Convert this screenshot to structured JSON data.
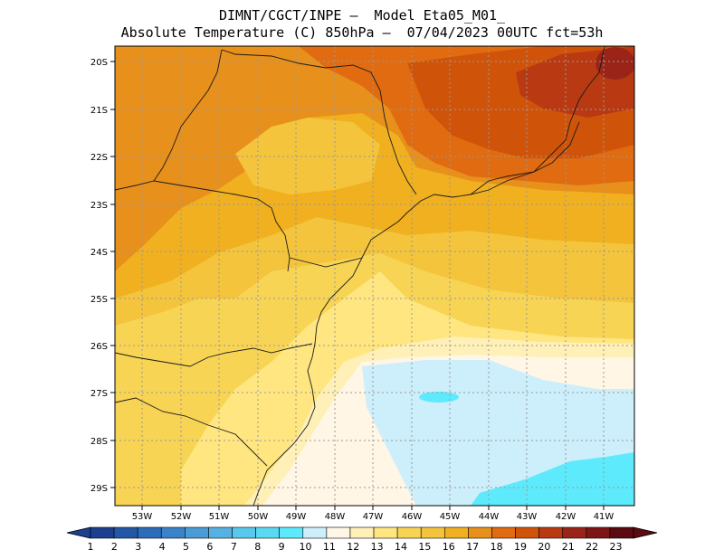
{
  "title_line1": "DIMNT/CGCT/INPE –  Model Eta05_M01_",
  "title_line2": "Absolute Temperature (C) 850hPa –  07/04/2023 00UTC fct=53h",
  "lat_labels": [
    "20S",
    "21S",
    "22S",
    "23S",
    "24S",
    "25S",
    "26S",
    "27S",
    "28S",
    "29S"
  ],
  "lon_labels": [
    "53W",
    "52W",
    "51W",
    "50W",
    "49W",
    "48W",
    "47W",
    "46W",
    "45W",
    "44W",
    "43W",
    "42W",
    "41W"
  ],
  "colorbar": {
    "labels": [
      "1",
      "2",
      "3",
      "4",
      "5",
      "6",
      "7",
      "8",
      "9",
      "10",
      "11",
      "12",
      "13",
      "14",
      "15",
      "16",
      "17",
      "18",
      "19",
      "20",
      "21",
      "22",
      "23"
    ],
    "colors": [
      "#1d3f8f",
      "#2457a6",
      "#2d6cb8",
      "#3a83c8",
      "#4a9bd6",
      "#55b2e2",
      "#58c8ec",
      "#5ad9f2",
      "#5deafc",
      "#cdeefb",
      "#fff6e6",
      "#fff0b8",
      "#ffe680",
      "#f8d455",
      "#f3c43c",
      "#f0b020",
      "#e8901c",
      "#e06b10",
      "#cf540a",
      "#b93a12",
      "#9a2418",
      "#7e1616",
      "#5a0a10"
    ]
  },
  "field_colors": {
    "t17": "#e8901c",
    "t18": "#e06b10",
    "t19": "#cf540a",
    "t16": "#f0b020",
    "t15": "#f3c43c",
    "t14": "#f8d455",
    "t13": "#ffe680",
    "t12": "#fff0b8",
    "t11": "#fff6e6",
    "t10": "#cdeefb",
    "t9": "#5deafc",
    "t20": "#b93a12",
    "t21": "#9a2418"
  }
}
